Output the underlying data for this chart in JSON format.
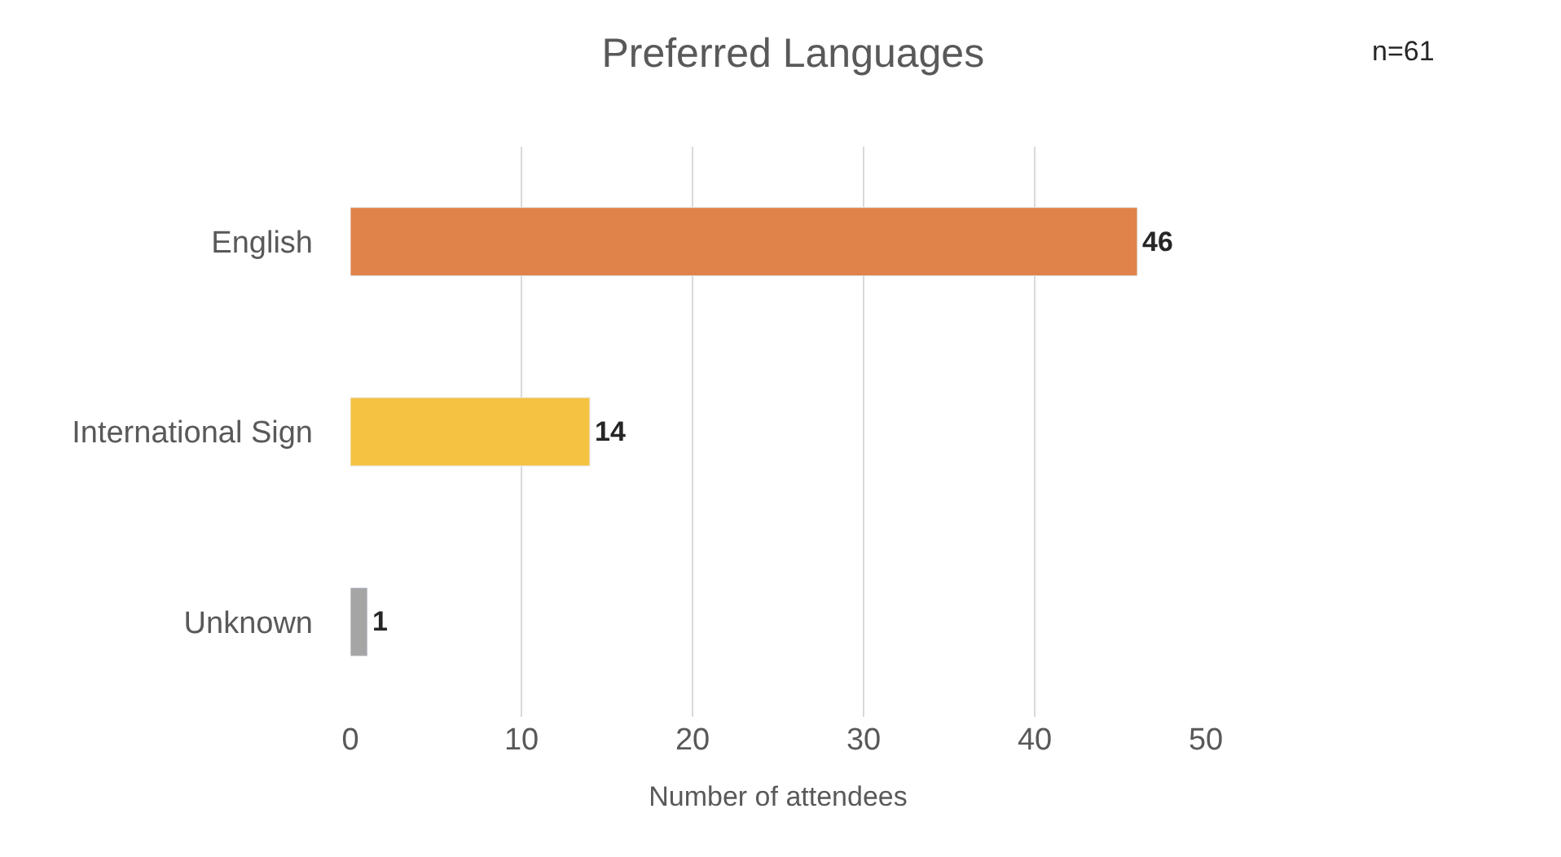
{
  "chart_data": {
    "type": "bar",
    "orientation": "horizontal",
    "title": "Preferred Languages",
    "xlabel": "Number of attendees",
    "categories": [
      "English",
      "International Sign",
      "Unknown"
    ],
    "values": [
      46,
      14,
      1
    ],
    "colors": [
      "#e0834a",
      "#f5c242",
      "#a5a5a5"
    ],
    "xlim": [
      0,
      50
    ],
    "xticks": [
      0,
      10,
      20,
      30,
      40,
      50
    ],
    "grid": "x",
    "data_labels": true,
    "annotations": [
      "n=61"
    ]
  }
}
